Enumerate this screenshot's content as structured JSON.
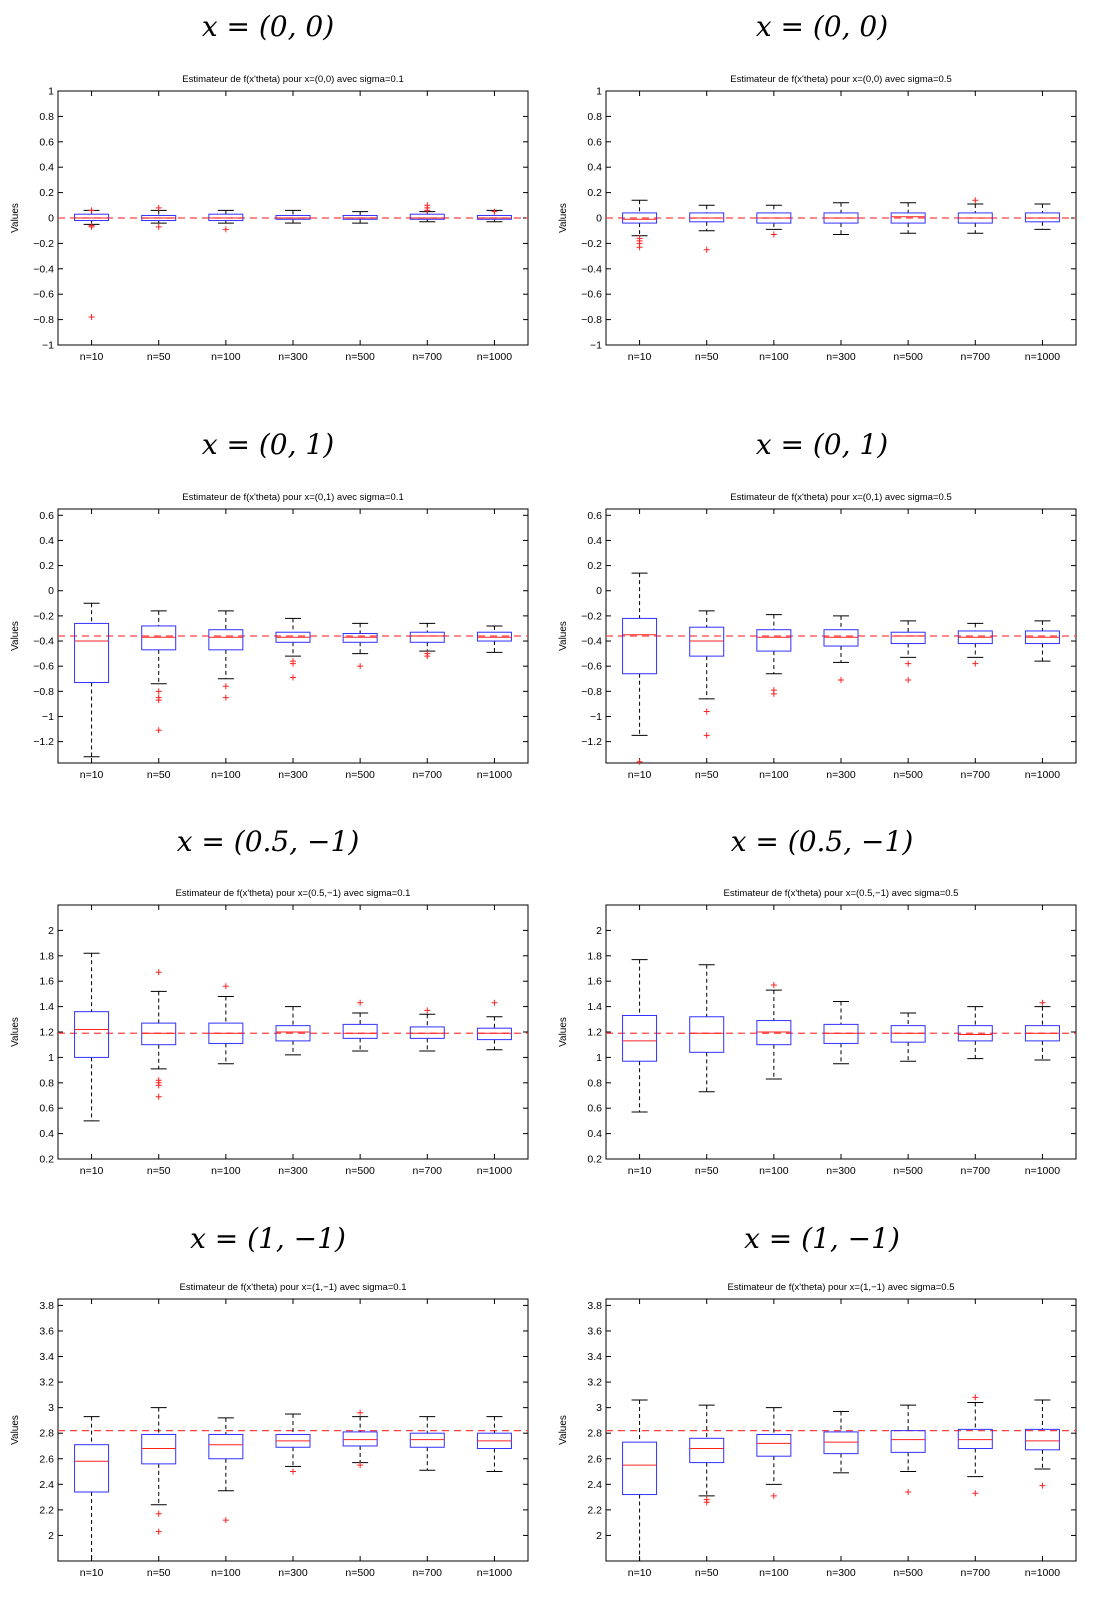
{
  "charts": [
    {
      "caption": "x = (0, 0)"
    },
    {
      "caption": "x = (0, 0)"
    },
    {
      "caption": "x = (0, 1)"
    },
    {
      "caption": "x = (0, 1)"
    },
    {
      "caption": "x = (0.5, −1)"
    },
    {
      "caption": "x = (0.5, −1)"
    },
    {
      "caption": "x = (1, −1)"
    },
    {
      "caption": "x = (1, −1)"
    }
  ],
  "colors": {
    "box": "#3030ff",
    "median": "#ff2020",
    "outlier": "#ff2020",
    "reference": "#ff4040",
    "whisker": "#000000"
  },
  "chart_data": [
    {
      "type": "box",
      "title": "Estimateur de f(x'theta) pour x=(0,0) avec sigma=0.1",
      "ylabel": "Values",
      "categories": [
        "n=10",
        "n=50",
        "n=100",
        "n=300",
        "n=500",
        "n=700",
        "n=1000"
      ],
      "ylim": [
        -1,
        1
      ],
      "yticks": [
        -1,
        -0.8,
        -0.6,
        -0.4,
        -0.2,
        0,
        0.2,
        0.4,
        0.6,
        0.8,
        1
      ],
      "reference_line": 0,
      "boxes": [
        {
          "q1": -0.02,
          "median": 0.0,
          "q3": 0.03,
          "lower": -0.05,
          "upper": 0.06,
          "mean": 0.0,
          "outliers": [
            -0.78,
            -0.06,
            -0.07,
            0.06
          ]
        },
        {
          "q1": -0.02,
          "median": 0.0,
          "q3": 0.02,
          "lower": -0.04,
          "upper": 0.06,
          "mean": 0.0,
          "outliers": [
            -0.07,
            0.08
          ]
        },
        {
          "q1": -0.02,
          "median": 0.0,
          "q3": 0.03,
          "lower": -0.04,
          "upper": 0.06,
          "mean": 0.0,
          "outliers": [
            -0.09
          ]
        },
        {
          "q1": -0.01,
          "median": 0.0,
          "q3": 0.02,
          "lower": -0.04,
          "upper": 0.06,
          "mean": 0.0,
          "outliers": []
        },
        {
          "q1": -0.01,
          "median": 0.0,
          "q3": 0.02,
          "lower": -0.04,
          "upper": 0.05,
          "mean": 0.0,
          "outliers": []
        },
        {
          "q1": -0.01,
          "median": 0.0,
          "q3": 0.03,
          "lower": -0.03,
          "upper": 0.05,
          "mean": 0.01,
          "outliers": [
            0.06,
            0.08,
            0.1
          ]
        },
        {
          "q1": -0.01,
          "median": 0.0,
          "q3": 0.02,
          "lower": -0.03,
          "upper": 0.06,
          "mean": 0.0,
          "outliers": [
            0.05
          ]
        }
      ]
    },
    {
      "type": "box",
      "title": "Estimateur de f(x'theta) pour x=(0,0) avec sigma=0.5",
      "ylabel": "Values",
      "categories": [
        "n=10",
        "n=50",
        "n=100",
        "n=300",
        "n=500",
        "n=700",
        "n=1000"
      ],
      "ylim": [
        -1,
        1
      ],
      "yticks": [
        -1,
        -0.8,
        -0.6,
        -0.4,
        -0.2,
        0,
        0.2,
        0.4,
        0.6,
        0.8,
        1
      ],
      "reference_line": 0,
      "boxes": [
        {
          "q1": -0.04,
          "median": -0.01,
          "q3": 0.04,
          "lower": -0.14,
          "upper": 0.14,
          "mean": 0.0,
          "outliers": [
            -0.16,
            -0.18,
            -0.2,
            -0.23
          ]
        },
        {
          "q1": -0.03,
          "median": 0.0,
          "q3": 0.04,
          "lower": -0.1,
          "upper": 0.1,
          "mean": 0.0,
          "outliers": [
            -0.25
          ]
        },
        {
          "q1": -0.04,
          "median": 0.0,
          "q3": 0.04,
          "lower": -0.09,
          "upper": 0.1,
          "mean": 0.0,
          "outliers": [
            -0.13
          ]
        },
        {
          "q1": -0.04,
          "median": 0.0,
          "q3": 0.04,
          "lower": -0.13,
          "upper": 0.12,
          "mean": 0.0,
          "outliers": []
        },
        {
          "q1": -0.04,
          "median": 0.01,
          "q3": 0.04,
          "lower": -0.12,
          "upper": 0.12,
          "mean": 0.0,
          "outliers": []
        },
        {
          "q1": -0.04,
          "median": 0.0,
          "q3": 0.04,
          "lower": -0.12,
          "upper": 0.11,
          "mean": 0.0,
          "outliers": [
            0.14
          ]
        },
        {
          "q1": -0.03,
          "median": 0.0,
          "q3": 0.04,
          "lower": -0.09,
          "upper": 0.11,
          "mean": 0.0,
          "outliers": []
        }
      ]
    },
    {
      "type": "box",
      "title": "Estimateur de f(x'theta) pour x=(0,1) avec sigma=0.1",
      "ylabel": "Values",
      "categories": [
        "n=10",
        "n=50",
        "n=100",
        "n=300",
        "n=500",
        "n=700",
        "n=1000"
      ],
      "ylim": [
        -1.37,
        0.65
      ],
      "yticks": [
        -1.2,
        -1,
        -0.8,
        -0.6,
        -0.4,
        -0.2,
        0,
        0.2,
        0.4,
        0.6
      ],
      "reference_line": -0.36,
      "boxes": [
        {
          "q1": -0.73,
          "median": -0.4,
          "q3": -0.26,
          "lower": -1.32,
          "upper": -0.1,
          "mean": -0.36,
          "outliers": []
        },
        {
          "q1": -0.47,
          "median": -0.37,
          "q3": -0.28,
          "lower": -0.74,
          "upper": -0.16,
          "mean": -0.36,
          "outliers": [
            -0.8,
            -0.85,
            -0.87,
            -1.11
          ]
        },
        {
          "q1": -0.47,
          "median": -0.37,
          "q3": -0.31,
          "lower": -0.7,
          "upper": -0.16,
          "mean": -0.36,
          "outliers": [
            -0.76,
            -0.85
          ]
        },
        {
          "q1": -0.41,
          "median": -0.37,
          "q3": -0.33,
          "lower": -0.52,
          "upper": -0.22,
          "mean": -0.36,
          "outliers": [
            -0.56,
            -0.58,
            -0.69
          ]
        },
        {
          "q1": -0.41,
          "median": -0.37,
          "q3": -0.34,
          "lower": -0.5,
          "upper": -0.26,
          "mean": -0.36,
          "outliers": [
            -0.6
          ]
        },
        {
          "q1": -0.41,
          "median": -0.36,
          "q3": -0.33,
          "lower": -0.48,
          "upper": -0.26,
          "mean": -0.36,
          "outliers": [
            -0.5,
            -0.52
          ]
        },
        {
          "q1": -0.4,
          "median": -0.37,
          "q3": -0.33,
          "lower": -0.49,
          "upper": -0.28,
          "mean": -0.36,
          "outliers": []
        }
      ]
    },
    {
      "type": "box",
      "title": "Estimateur de f(x'theta) pour x=(0,1) avec sigma=0.5",
      "ylabel": "Values",
      "categories": [
        "n=10",
        "n=50",
        "n=100",
        "n=300",
        "n=500",
        "n=700",
        "n=1000"
      ],
      "ylim": [
        -1.37,
        0.65
      ],
      "yticks": [
        -1.2,
        -1,
        -0.8,
        -0.6,
        -0.4,
        -0.2,
        0,
        0.2,
        0.4,
        0.6
      ],
      "reference_line": -0.36,
      "boxes": [
        {
          "q1": -0.66,
          "median": -0.35,
          "q3": -0.22,
          "lower": -1.15,
          "upper": 0.14,
          "mean": -0.36,
          "outliers": [
            -1.36
          ]
        },
        {
          "q1": -0.52,
          "median": -0.4,
          "q3": -0.29,
          "lower": -0.86,
          "upper": -0.16,
          "mean": -0.36,
          "outliers": [
            -0.96,
            -1.15
          ]
        },
        {
          "q1": -0.48,
          "median": -0.37,
          "q3": -0.31,
          "lower": -0.66,
          "upper": -0.19,
          "mean": -0.36,
          "outliers": [
            -0.79,
            -0.82
          ]
        },
        {
          "q1": -0.44,
          "median": -0.37,
          "q3": -0.31,
          "lower": -0.57,
          "upper": -0.2,
          "mean": -0.36,
          "outliers": [
            -0.71
          ]
        },
        {
          "q1": -0.42,
          "median": -0.36,
          "q3": -0.33,
          "lower": -0.53,
          "upper": -0.24,
          "mean": -0.36,
          "outliers": [
            -0.58,
            -0.71
          ]
        },
        {
          "q1": -0.42,
          "median": -0.37,
          "q3": -0.32,
          "lower": -0.53,
          "upper": -0.26,
          "mean": -0.36,
          "outliers": [
            -0.58
          ]
        },
        {
          "q1": -0.42,
          "median": -0.37,
          "q3": -0.32,
          "lower": -0.56,
          "upper": -0.24,
          "mean": -0.36,
          "outliers": []
        }
      ]
    },
    {
      "type": "box",
      "title": "Estimateur de f(x'theta) pour x=(0.5,−1) avec sigma=0.1",
      "ylabel": "Values",
      "categories": [
        "n=10",
        "n=50",
        "n=100",
        "n=300",
        "n=500",
        "n=700",
        "n=1000"
      ],
      "ylim": [
        0.2,
        2.2
      ],
      "yticks": [
        0.2,
        0.4,
        0.6,
        0.8,
        1,
        1.2,
        1.4,
        1.6,
        1.8,
        2
      ],
      "reference_line": 1.19,
      "boxes": [
        {
          "q1": 1.0,
          "median": 1.22,
          "q3": 1.36,
          "lower": 0.5,
          "upper": 1.82,
          "mean": 1.2,
          "outliers": []
        },
        {
          "q1": 1.1,
          "median": 1.19,
          "q3": 1.27,
          "lower": 0.91,
          "upper": 1.52,
          "mean": 1.19,
          "outliers": [
            0.8,
            0.82,
            0.78,
            0.69,
            1.67
          ]
        },
        {
          "q1": 1.11,
          "median": 1.19,
          "q3": 1.27,
          "lower": 0.95,
          "upper": 1.48,
          "mean": 1.19,
          "outliers": [
            1.56
          ]
        },
        {
          "q1": 1.13,
          "median": 1.2,
          "q3": 1.25,
          "lower": 1.02,
          "upper": 1.4,
          "mean": 1.19,
          "outliers": []
        },
        {
          "q1": 1.15,
          "median": 1.19,
          "q3": 1.26,
          "lower": 1.05,
          "upper": 1.35,
          "mean": 1.19,
          "outliers": [
            1.43
          ]
        },
        {
          "q1": 1.15,
          "median": 1.19,
          "q3": 1.24,
          "lower": 1.05,
          "upper": 1.34,
          "mean": 1.19,
          "outliers": [
            1.37
          ]
        },
        {
          "q1": 1.14,
          "median": 1.19,
          "q3": 1.23,
          "lower": 1.06,
          "upper": 1.32,
          "mean": 1.19,
          "outliers": [
            1.43
          ]
        }
      ]
    },
    {
      "type": "box",
      "title": "Estimateur de f(x'theta) pour x=(0.5,−1) avec sigma=0.5",
      "ylabel": "Values",
      "categories": [
        "n=10",
        "n=50",
        "n=100",
        "n=300",
        "n=500",
        "n=700",
        "n=1000"
      ],
      "ylim": [
        0.2,
        2.2
      ],
      "yticks": [
        0.2,
        0.4,
        0.6,
        0.8,
        1,
        1.2,
        1.4,
        1.6,
        1.8,
        2
      ],
      "reference_line": 1.19,
      "boxes": [
        {
          "q1": 0.97,
          "median": 1.13,
          "q3": 1.33,
          "lower": 0.57,
          "upper": 1.77,
          "mean": 1.19,
          "outliers": []
        },
        {
          "q1": 1.04,
          "median": 1.19,
          "q3": 1.32,
          "lower": 0.73,
          "upper": 1.73,
          "mean": 1.19,
          "outliers": []
        },
        {
          "q1": 1.1,
          "median": 1.2,
          "q3": 1.29,
          "lower": 0.83,
          "upper": 1.53,
          "mean": 1.19,
          "outliers": [
            1.57
          ]
        },
        {
          "q1": 1.11,
          "median": 1.19,
          "q3": 1.26,
          "lower": 0.95,
          "upper": 1.44,
          "mean": 1.19,
          "outliers": []
        },
        {
          "q1": 1.12,
          "median": 1.19,
          "q3": 1.25,
          "lower": 0.97,
          "upper": 1.35,
          "mean": 1.19,
          "outliers": []
        },
        {
          "q1": 1.13,
          "median": 1.18,
          "q3": 1.25,
          "lower": 0.99,
          "upper": 1.4,
          "mean": 1.19,
          "outliers": []
        },
        {
          "q1": 1.13,
          "median": 1.19,
          "q3": 1.25,
          "lower": 0.98,
          "upper": 1.4,
          "mean": 1.19,
          "outliers": [
            1.43
          ]
        }
      ]
    },
    {
      "type": "box",
      "title": "Estimateur de f(x'theta) pour x=(1,−1) avec sigma=0.1",
      "ylabel": "Values",
      "categories": [
        "n=10",
        "n=50",
        "n=100",
        "n=300",
        "n=500",
        "n=700",
        "n=1000"
      ],
      "ylim": [
        1.8,
        3.85
      ],
      "yticks": [
        2,
        2.2,
        2.4,
        2.6,
        2.8,
        3,
        3.2,
        3.4,
        3.6,
        3.8
      ],
      "reference_line": 2.82,
      "boxes": [
        {
          "q1": 2.34,
          "median": 2.58,
          "q3": 2.71,
          "lower": 1.8,
          "upper": 2.93,
          "mean": 2.58,
          "outliers": []
        },
        {
          "q1": 2.56,
          "median": 2.68,
          "q3": 2.79,
          "lower": 2.24,
          "upper": 3.0,
          "mean": 2.68,
          "outliers": [
            2.17,
            2.03
          ]
        },
        {
          "q1": 2.6,
          "median": 2.71,
          "q3": 2.79,
          "lower": 2.35,
          "upper": 2.92,
          "mean": 2.7,
          "outliers": [
            2.12
          ]
        },
        {
          "q1": 2.69,
          "median": 2.74,
          "q3": 2.79,
          "lower": 2.54,
          "upper": 2.95,
          "mean": 2.74,
          "outliers": [
            2.5
          ]
        },
        {
          "q1": 2.7,
          "median": 2.75,
          "q3": 2.81,
          "lower": 2.57,
          "upper": 2.93,
          "mean": 2.75,
          "outliers": [
            2.96,
            2.55
          ]
        },
        {
          "q1": 2.69,
          "median": 2.75,
          "q3": 2.8,
          "lower": 2.51,
          "upper": 2.93,
          "mean": 2.74,
          "outliers": []
        },
        {
          "q1": 2.68,
          "median": 2.74,
          "q3": 2.8,
          "lower": 2.5,
          "upper": 2.93,
          "mean": 2.74,
          "outliers": []
        }
      ]
    },
    {
      "type": "box",
      "title": "Estimateur de f(x'theta) pour x=(1,−1) avec sigma=0.5",
      "ylabel": "Values",
      "categories": [
        "n=10",
        "n=50",
        "n=100",
        "n=300",
        "n=500",
        "n=700",
        "n=1000"
      ],
      "ylim": [
        1.8,
        3.85
      ],
      "yticks": [
        2,
        2.2,
        2.4,
        2.6,
        2.8,
        3,
        3.2,
        3.4,
        3.6,
        3.8
      ],
      "reference_line": 2.82,
      "boxes": [
        {
          "q1": 2.32,
          "median": 2.55,
          "q3": 2.73,
          "lower": 1.8,
          "upper": 3.06,
          "mean": 2.55,
          "outliers": []
        },
        {
          "q1": 2.57,
          "median": 2.68,
          "q3": 2.76,
          "lower": 2.31,
          "upper": 3.02,
          "mean": 2.68,
          "outliers": [
            2.28,
            2.26
          ]
        },
        {
          "q1": 2.62,
          "median": 2.72,
          "q3": 2.79,
          "lower": 2.4,
          "upper": 3.0,
          "mean": 2.71,
          "outliers": [
            2.31
          ]
        },
        {
          "q1": 2.64,
          "median": 2.73,
          "q3": 2.81,
          "lower": 2.49,
          "upper": 2.97,
          "mean": 2.73,
          "outliers": []
        },
        {
          "q1": 2.65,
          "median": 2.75,
          "q3": 2.82,
          "lower": 2.5,
          "upper": 3.02,
          "mean": 2.74,
          "outliers": [
            2.34
          ]
        },
        {
          "q1": 2.68,
          "median": 2.75,
          "q3": 2.83,
          "lower": 2.46,
          "upper": 3.04,
          "mean": 2.75,
          "outliers": [
            2.33,
            3.08
          ]
        },
        {
          "q1": 2.67,
          "median": 2.74,
          "q3": 2.83,
          "lower": 2.52,
          "upper": 3.06,
          "mean": 2.74,
          "outliers": [
            2.39
          ]
        }
      ]
    }
  ]
}
